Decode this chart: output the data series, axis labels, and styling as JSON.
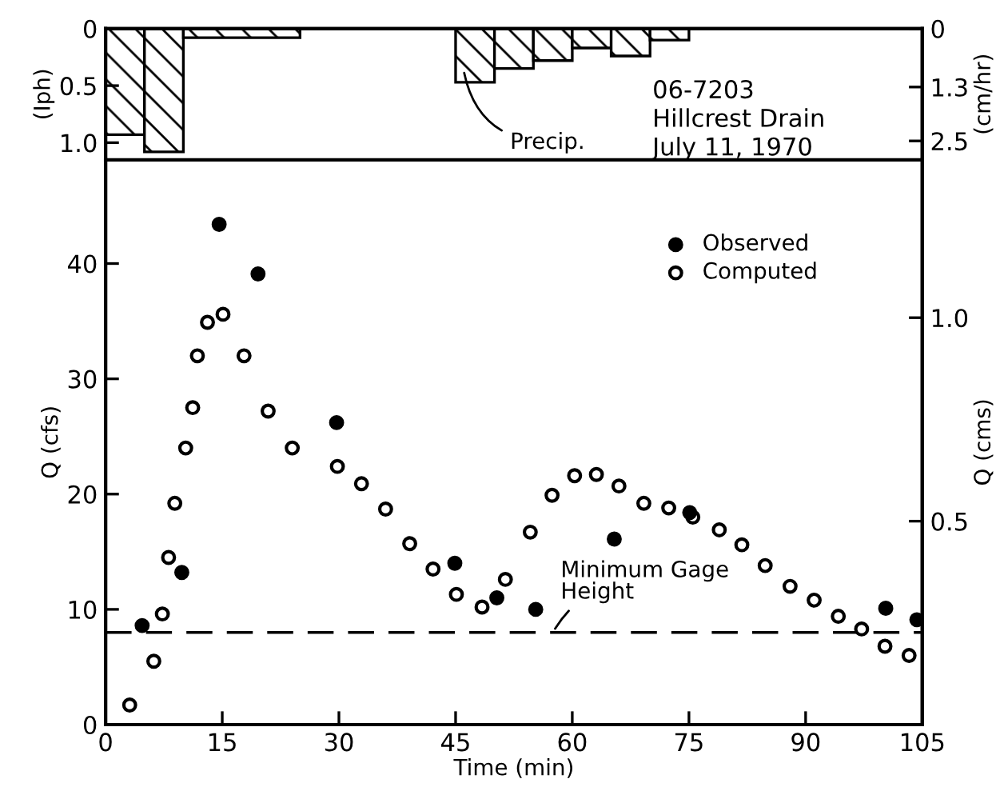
{
  "chart_data": [
    {
      "type": "histogram",
      "ylabel": "(Iph)",
      "y2label": "(cm/hr)",
      "bins": [
        0,
        5,
        10,
        25,
        45,
        50,
        55,
        60,
        65,
        70,
        75
      ],
      "values": [
        0.93,
        1.08,
        0.08,
        0,
        0.47,
        0.35,
        0.28,
        0.17,
        0.24,
        0.1
      ],
      "color": "#000000",
      "xlim": [
        0,
        105
      ],
      "ylim": [
        1.15,
        0
      ],
      "yticks": [
        0,
        0.5,
        {
          "value": 1,
          "label": "1.0"
        }
      ],
      "y2lim": [
        2.92,
        0
      ],
      "y2ticks": [
        0,
        1.3,
        2.5
      ],
      "tick_labels": "y",
      "grid": false,
      "annotations": [
        {
          "text": "Precip.",
          "x": 46,
          "y": 0.35
        }
      ]
    },
    {
      "type": "scatter",
      "xlabel": "Time (min)",
      "ylabel": "Q (cfs)",
      "y2label": "Q (cms)",
      "xlim": [
        0,
        105
      ],
      "xticks": [
        0,
        15,
        30,
        45,
        60,
        75,
        90,
        105
      ],
      "ylim": [
        0,
        49
      ],
      "yticks": [
        0,
        10,
        20,
        30,
        40
      ],
      "y2lim": [
        0,
        1.388
      ],
      "y2ticks": [
        0.5,
        {
          "value": 1,
          "label": "1.0"
        }
      ],
      "grid": false,
      "legend": "top right",
      "marker": "circle",
      "series": [
        {
          "name": "Observed",
          "color": "#000000",
          "x": [
            4.7,
            9.8,
            14.6,
            19.6,
            29.7,
            44.9,
            50.3,
            55.3,
            65.4,
            75.1,
            100.3,
            104.3
          ],
          "values": [
            8.6,
            13.2,
            43.4,
            39.1,
            26.2,
            14.0,
            11.0,
            10.0,
            16.1,
            18.4,
            10.1,
            9.1
          ]
        },
        {
          "name": "Computed",
          "color": "#ffffff",
          "x": [
            3.1,
            6.2,
            7.3,
            8.1,
            8.9,
            10.3,
            11.2,
            11.8,
            13.1,
            15.1,
            17.8,
            20.9,
            24.0,
            29.8,
            32.9,
            36.0,
            39.1,
            42.1,
            45.1,
            48.4,
            51.4,
            54.6,
            57.4,
            60.3,
            63.1,
            66.0,
            69.2,
            72.4,
            75.5,
            78.9,
            81.8,
            84.8,
            88.0,
            91.1,
            94.2,
            97.2,
            100.2,
            103.3
          ],
          "values": [
            1.7,
            5.5,
            9.6,
            14.5,
            19.2,
            24.0,
            27.5,
            32.0,
            34.9,
            35.6,
            32.0,
            27.2,
            24.0,
            22.4,
            20.9,
            18.7,
            15.7,
            13.5,
            11.3,
            10.2,
            12.6,
            16.7,
            19.9,
            21.6,
            21.7,
            20.7,
            19.2,
            18.8,
            18.0,
            16.9,
            15.6,
            13.8,
            12.0,
            10.8,
            9.4,
            8.3,
            6.8,
            6.0
          ]
        }
      ],
      "ref_lines": [
        {
          "axis": "y",
          "value": 8,
          "label": "Minimum Gage\nHeight",
          "color": "#000000",
          "line_style": "dashed"
        }
      ],
      "annotations": [
        "06-7203",
        "Hillcrest Drain",
        "July 11, 1970"
      ]
    }
  ]
}
